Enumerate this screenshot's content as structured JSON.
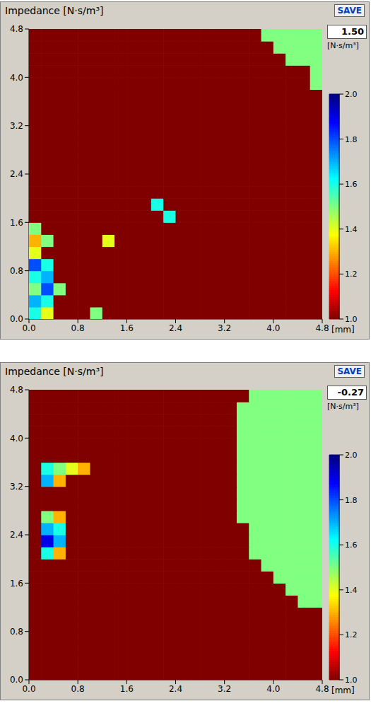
{
  "chart_data": [
    {
      "type": "heatmap",
      "title": "Impedance [N·s/m³]",
      "button": "SAVE",
      "readout": {
        "value": 1.5,
        "label": "1.50"
      },
      "unit": "[N·s/m³]",
      "x_label": "[mm]",
      "xlim": [
        0,
        4.8
      ],
      "ylim": [
        0,
        4.8
      ],
      "xticks": [
        {
          "value": 0,
          "label": "0.0"
        },
        0.8,
        1.6,
        2.4,
        3.2,
        {
          "value": 4,
          "label": "4.0"
        },
        4.8
      ],
      "yticks": [
        {
          "value": 0,
          "label": "0.0"
        },
        0.8,
        1.6,
        2.4,
        3.2,
        {
          "value": 4,
          "label": "4.0"
        },
        4.8
      ],
      "colorbar_range": [
        1,
        2
      ],
      "colorbar_ticks": [
        {
          "value": 1,
          "label": "1.0"
        },
        1.2,
        1.4,
        1.6,
        1.8,
        {
          "value": 2,
          "label": "2.0"
        }
      ],
      "cell_x": [
        0.1,
        0.3,
        0.5,
        0.7,
        0.9,
        1.1,
        1.3,
        1.5,
        1.7,
        1.9,
        2.1,
        2.3,
        2.5,
        2.7,
        2.9,
        3.1,
        3.3,
        3.5,
        3.7,
        3.9,
        4.1,
        4.3,
        4.5,
        4.7
      ],
      "cell_y": [
        0.1,
        0.3,
        0.5,
        0.7,
        0.9,
        1.1,
        1.3,
        1.5,
        1.7,
        1.9,
        2.1,
        2.3,
        2.5,
        2.7,
        2.9,
        3.1,
        3.3,
        3.5,
        3.7,
        3.9,
        4.1,
        4.3,
        4.5,
        4.7
      ],
      "cells": [
        [
          1.6,
          1.4,
          1,
          1,
          1,
          1.5,
          1,
          1,
          1,
          1,
          1,
          1,
          1,
          1,
          1,
          1,
          1,
          1,
          1,
          1,
          1,
          1,
          1,
          1
        ],
        [
          1.7,
          1.6,
          1,
          1,
          1,
          1,
          1,
          1,
          1,
          1,
          1,
          1,
          1,
          1,
          1,
          1,
          1,
          1,
          1,
          1,
          1,
          1,
          1,
          1
        ],
        [
          1.5,
          1.8,
          1.5,
          1,
          1,
          1,
          1,
          1,
          1,
          1,
          1,
          1,
          1,
          1,
          1,
          1,
          1,
          1,
          1,
          1,
          1,
          1,
          1,
          1
        ],
        [
          1.6,
          1.7,
          1,
          1,
          1,
          1,
          1,
          1,
          1,
          1,
          1,
          1,
          1,
          1,
          1,
          1,
          1,
          1,
          1,
          1,
          1,
          1,
          1,
          1
        ],
        [
          1.8,
          1.6,
          1,
          1,
          1,
          1,
          1,
          1,
          1,
          1,
          1,
          1,
          1,
          1,
          1,
          1,
          1,
          1,
          1,
          1,
          1,
          1,
          1,
          1
        ],
        [
          1.4,
          1,
          1,
          1,
          1,
          1,
          1,
          1,
          1,
          1,
          1,
          1,
          1,
          1,
          1,
          1,
          1,
          1,
          1,
          1,
          1,
          1,
          1,
          1
        ],
        [
          1.3,
          1.5,
          1,
          1,
          1,
          1,
          1.4,
          1,
          1,
          1,
          1,
          1,
          1,
          1,
          1,
          1,
          1,
          1,
          1,
          1,
          1,
          1,
          1,
          1
        ],
        [
          1.5,
          1,
          1,
          1,
          1,
          1,
          1,
          1,
          1,
          1,
          1,
          1,
          1,
          1,
          1,
          1,
          1,
          1,
          1,
          1,
          1,
          1,
          1,
          1
        ],
        [
          1,
          1,
          1,
          1,
          1,
          1,
          1,
          1,
          1,
          1,
          1,
          1.6,
          1,
          1,
          1,
          1,
          1,
          1,
          1,
          1,
          1,
          1,
          1,
          1
        ],
        [
          1,
          1,
          1,
          1,
          1,
          1,
          1,
          1,
          1,
          1,
          1.6,
          1,
          1,
          1,
          1,
          1,
          1,
          1,
          1,
          1,
          1,
          1,
          1,
          1
        ],
        [
          1,
          1,
          1,
          1,
          1,
          1,
          1,
          1,
          1,
          1,
          1,
          1,
          1,
          1,
          1,
          1,
          1,
          1,
          1,
          1,
          1,
          1,
          1,
          1
        ],
        [
          1,
          1,
          1,
          1,
          1,
          1,
          1,
          1,
          1,
          1,
          1,
          1,
          1,
          1,
          1,
          1,
          1,
          1,
          1,
          1,
          1,
          1,
          1,
          1
        ],
        [
          1,
          1,
          1,
          1,
          1,
          1,
          1,
          1,
          1,
          1,
          1,
          1,
          1,
          1,
          1,
          1,
          1,
          1,
          1,
          1,
          1,
          1,
          1,
          1
        ],
        [
          1,
          1,
          1,
          1,
          1,
          1,
          1,
          1,
          1,
          1,
          1,
          1,
          1,
          1,
          1,
          1,
          1,
          1,
          1,
          1,
          1,
          1,
          1,
          1
        ],
        [
          1,
          1,
          1,
          1,
          1,
          1,
          1,
          1,
          1,
          1,
          1,
          1,
          1,
          1,
          1,
          1,
          1,
          1,
          1,
          1,
          1,
          1,
          1,
          1
        ],
        [
          1,
          1,
          1,
          1,
          1,
          1,
          1,
          1,
          1,
          1,
          1,
          1,
          1,
          1,
          1,
          1,
          1,
          1,
          1,
          1,
          1,
          1,
          1,
          1
        ],
        [
          1,
          1,
          1,
          1,
          1,
          1,
          1,
          1,
          1,
          1,
          1,
          1,
          1,
          1,
          1,
          1,
          1,
          1,
          1,
          1,
          1,
          1,
          1,
          1
        ],
        [
          1,
          1,
          1,
          1,
          1,
          1,
          1,
          1,
          1,
          1,
          1,
          1,
          1,
          1,
          1,
          1,
          1,
          1,
          1,
          1,
          1,
          1,
          1,
          1
        ],
        [
          1,
          1,
          1,
          1,
          1,
          1,
          1,
          1,
          1,
          1,
          1,
          1,
          1,
          1,
          1,
          1,
          1,
          1,
          1,
          1,
          1,
          1,
          1,
          1
        ],
        [
          1,
          1,
          1,
          1,
          1,
          1,
          1,
          1,
          1,
          1,
          1,
          1,
          1,
          1,
          1,
          1,
          1,
          1,
          1,
          1,
          1,
          1,
          1,
          1.5
        ],
        [
          1,
          1,
          1,
          1,
          1,
          1,
          1,
          1,
          1,
          1,
          1,
          1,
          1,
          1,
          1,
          1,
          1,
          1,
          1,
          1,
          1,
          1,
          1,
          1.5
        ],
        [
          1,
          1,
          1,
          1,
          1,
          1,
          1,
          1,
          1,
          1,
          1,
          1,
          1,
          1,
          1,
          1,
          1,
          1,
          1,
          1,
          1,
          1.5,
          1.5,
          1.5
        ],
        [
          1,
          1,
          1,
          1,
          1,
          1,
          1,
          1,
          1,
          1,
          1,
          1,
          1,
          1,
          1,
          1,
          1,
          1,
          1,
          1,
          1.5,
          1.5,
          1.5,
          1.5
        ],
        [
          1,
          1,
          1,
          1,
          1,
          1,
          1,
          1,
          1,
          1,
          1,
          1,
          1,
          1,
          1,
          1,
          1,
          1,
          1,
          1.5,
          1.5,
          1.5,
          1.5,
          1.5
        ]
      ]
    },
    {
      "type": "heatmap",
      "title": "Impedance [N·s/m³]",
      "button": "SAVE",
      "readout": -0.27,
      "unit": "[N·s/m³]",
      "x_label": "[mm]",
      "xlim": [
        0,
        4.8
      ],
      "ylim": [
        0,
        4.8
      ],
      "xticks": [
        {
          "value": 0,
          "label": "0.0"
        },
        0.8,
        1.6,
        2.4,
        3.2,
        {
          "value": 4,
          "label": "4.0"
        },
        4.8
      ],
      "yticks": [
        {
          "value": 0,
          "label": "0.0"
        },
        0.8,
        1.6,
        2.4,
        3.2,
        {
          "value": 4,
          "label": "4.0"
        },
        4.8
      ],
      "colorbar_range": [
        1,
        2
      ],
      "colorbar_ticks": [
        {
          "value": 1,
          "label": "1.0"
        },
        1.2,
        1.4,
        1.6,
        1.8,
        {
          "value": 2,
          "label": "2.0"
        }
      ],
      "cell_x": [
        0.1,
        0.3,
        0.5,
        0.7,
        0.9,
        1.1,
        1.3,
        1.5,
        1.7,
        1.9,
        2.1,
        2.3,
        2.5,
        2.7,
        2.9,
        3.1,
        3.3,
        3.5,
        3.7,
        3.9,
        4.1,
        4.3,
        4.5,
        4.7
      ],
      "cell_y": [
        0.1,
        0.3,
        0.5,
        0.7,
        0.9,
        1.1,
        1.3,
        1.5,
        1.7,
        1.9,
        2.1,
        2.3,
        2.5,
        2.7,
        2.9,
        3.1,
        3.3,
        3.5,
        3.7,
        3.9,
        4.1,
        4.3,
        4.5,
        4.7
      ],
      "cells": [
        [
          1,
          1,
          1,
          1,
          1,
          1,
          1,
          1,
          1,
          1,
          1,
          1,
          1,
          1,
          1,
          1,
          1,
          1,
          1,
          1,
          1,
          1,
          1,
          1
        ],
        [
          1,
          1,
          1,
          1,
          1,
          1,
          1,
          1,
          1,
          1,
          1,
          1,
          1,
          1,
          1,
          1,
          1,
          1,
          1,
          1,
          1,
          1,
          1,
          1
        ],
        [
          1,
          1,
          1,
          1,
          1,
          1,
          1,
          1,
          1,
          1,
          1,
          1,
          1,
          1,
          1,
          1,
          1,
          1,
          1,
          1,
          1,
          1,
          1,
          1
        ],
        [
          1,
          1,
          1,
          1,
          1,
          1,
          1,
          1,
          1,
          1,
          1,
          1,
          1,
          1,
          1,
          1,
          1,
          1,
          1,
          1,
          1,
          1,
          1,
          1
        ],
        [
          1,
          1,
          1,
          1,
          1,
          1,
          1,
          1,
          1,
          1,
          1,
          1,
          1,
          1,
          1,
          1,
          1,
          1,
          1,
          1,
          1,
          1,
          1,
          1
        ],
        [
          1,
          1,
          1,
          1,
          1,
          1,
          1,
          1,
          1,
          1,
          1,
          1,
          1,
          1,
          1,
          1,
          1,
          1,
          1,
          1,
          1,
          1,
          1,
          1
        ],
        [
          1,
          1,
          1,
          1,
          1,
          1,
          1,
          1,
          1,
          1,
          1,
          1,
          1,
          1,
          1,
          1,
          1,
          1,
          1,
          1,
          1,
          1,
          1.5,
          1.5
        ],
        [
          1,
          1,
          1,
          1,
          1,
          1,
          1,
          1,
          1,
          1,
          1,
          1,
          1,
          1,
          1,
          1,
          1,
          1,
          1,
          1,
          1,
          1.5,
          1.5,
          1.5
        ],
        [
          1,
          1,
          1,
          1,
          1,
          1,
          1,
          1,
          1,
          1,
          1,
          1,
          1,
          1,
          1,
          1,
          1,
          1,
          1,
          1,
          1.5,
          1.5,
          1.5,
          1.5
        ],
        [
          1,
          1,
          1,
          1,
          1,
          1,
          1,
          1,
          1,
          1,
          1,
          1,
          1,
          1,
          1,
          1,
          1,
          1,
          1,
          1.5,
          1.5,
          1.5,
          1.5,
          1.5
        ],
        [
          1,
          1.6,
          1.3,
          1,
          1,
          1,
          1,
          1,
          1,
          1,
          1,
          1,
          1,
          1,
          1,
          1,
          1,
          1,
          1.5,
          1.5,
          1.5,
          1.5,
          1.5,
          1.5
        ],
        [
          1,
          1.9,
          1.7,
          1,
          1,
          1,
          1,
          1,
          1,
          1,
          1,
          1,
          1,
          1,
          1,
          1,
          1,
          1,
          1.5,
          1.5,
          1.5,
          1.5,
          1.5,
          1.5
        ],
        [
          1,
          1.7,
          1.6,
          1,
          1,
          1,
          1,
          1,
          1,
          1,
          1,
          1,
          1,
          1,
          1,
          1,
          1,
          1,
          1.5,
          1.5,
          1.5,
          1.5,
          1.5,
          1.5
        ],
        [
          1,
          1.5,
          1.3,
          1,
          1,
          1,
          1,
          1,
          1,
          1,
          1,
          1,
          1,
          1,
          1,
          1,
          1,
          1.5,
          1.5,
          1.5,
          1.5,
          1.5,
          1.5,
          1.5
        ],
        [
          1,
          1,
          1,
          1,
          1,
          1,
          1,
          1,
          1,
          1,
          1,
          1,
          1,
          1,
          1,
          1,
          1,
          1.5,
          1.5,
          1.5,
          1.5,
          1.5,
          1.5,
          1.5
        ],
        [
          1,
          1,
          1,
          1,
          1,
          1,
          1,
          1,
          1,
          1,
          1,
          1,
          1,
          1,
          1,
          1,
          1,
          1.5,
          1.5,
          1.5,
          1.5,
          1.5,
          1.5,
          1.5
        ],
        [
          1,
          1.7,
          1.3,
          1,
          1,
          1,
          1,
          1,
          1,
          1,
          1,
          1,
          1,
          1,
          1,
          1,
          1,
          1.5,
          1.5,
          1.5,
          1.5,
          1.5,
          1.5,
          1.5
        ],
        [
          1,
          1.6,
          1.5,
          1.4,
          1.3,
          1,
          1,
          1,
          1,
          1,
          1,
          1,
          1,
          1,
          1,
          1,
          1,
          1.5,
          1.5,
          1.5,
          1.5,
          1.5,
          1.5,
          1.5
        ],
        [
          1,
          1,
          1,
          1,
          1,
          1,
          1,
          1,
          1,
          1,
          1,
          1,
          1,
          1,
          1,
          1,
          1,
          1.5,
          1.5,
          1.5,
          1.5,
          1.5,
          1.5,
          1.5
        ],
        [
          1,
          1,
          1,
          1,
          1,
          1,
          1,
          1,
          1,
          1,
          1,
          1,
          1,
          1,
          1,
          1,
          1,
          1.5,
          1.5,
          1.5,
          1.5,
          1.5,
          1.5,
          1.5
        ],
        [
          1,
          1,
          1,
          1,
          1,
          1,
          1,
          1,
          1,
          1,
          1,
          1,
          1,
          1,
          1,
          1,
          1,
          1.5,
          1.5,
          1.5,
          1.5,
          1.5,
          1.5,
          1.5
        ],
        [
          1,
          1,
          1,
          1,
          1,
          1,
          1,
          1,
          1,
          1,
          1,
          1,
          1,
          1,
          1,
          1,
          1,
          1.5,
          1.5,
          1.5,
          1.5,
          1.5,
          1.5,
          1.5
        ],
        [
          1,
          1,
          1,
          1,
          1,
          1,
          1,
          1,
          1,
          1,
          1,
          1,
          1,
          1,
          1,
          1,
          1,
          1.5,
          1.5,
          1.5,
          1.5,
          1.5,
          1.5,
          1.5
        ],
        [
          1,
          1,
          1,
          1,
          1,
          1,
          1,
          1,
          1,
          1,
          1,
          1,
          1,
          1,
          1,
          1,
          1,
          1,
          1.5,
          1.5,
          1.5,
          1.5,
          1.5,
          1.5
        ]
      ]
    }
  ]
}
